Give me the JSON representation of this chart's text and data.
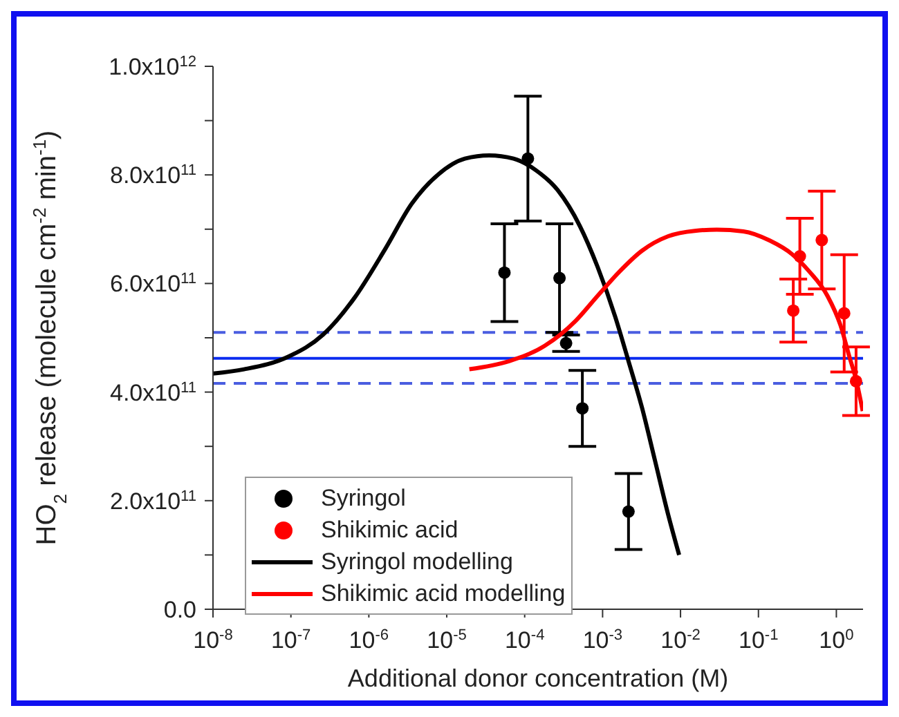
{
  "chart_data": {
    "type": "scatter",
    "xlabel": "Additional donor concentration (M)",
    "ylabel": "HO$_{2}$ release (molecule cm$^{-2}$ min$^{-1}$)",
    "log": "x",
    "xlim": [
      1e-08,
      2.2
    ],
    "xticks": [
      {
        "value": 1e-08,
        "label": "10$^{-8}$"
      },
      {
        "value": 1e-07,
        "label": "10$^{-7}$"
      },
      {
        "value": 1e-06,
        "label": "10$^{-6}$"
      },
      {
        "value": 1e-05,
        "label": "10$^{-5}$"
      },
      {
        "value": 0.0001,
        "label": "10$^{-4}$"
      },
      {
        "value": 0.001,
        "label": "10$^{-3}$"
      },
      {
        "value": 0.01,
        "label": "10$^{-2}$"
      },
      {
        "value": 0.1,
        "label": "10$^{-1}$"
      },
      {
        "value": 1,
        "label": "10$^{0}$"
      }
    ],
    "ylim": [
      0,
      1000000000000.0
    ],
    "yticks": [
      {
        "value": 0,
        "label": "0.0"
      },
      {
        "value": 100000000000.0,
        "label": null
      },
      {
        "value": 200000000000.0,
        "label": "2.0x10$^{11}$"
      },
      {
        "value": 300000000000.0,
        "label": null
      },
      {
        "value": 400000000000.0,
        "label": "4.0x10$^{11}$"
      },
      {
        "value": 500000000000.0,
        "label": null
      },
      {
        "value": 600000000000.0,
        "label": "6.0x10$^{11}$"
      },
      {
        "value": 700000000000.0,
        "label": null
      },
      {
        "value": 800000000000.0,
        "label": "8.0x10$^{11}$"
      },
      {
        "value": 900000000000.0,
        "label": null
      },
      {
        "value": 1000000000000.0,
        "label": "1.0x10$^{12}$"
      }
    ],
    "legend": "bottom left",
    "ref_lines": [
      {
        "axis": "y",
        "value": 462000000000.0,
        "color": "#0b2cf0",
        "line_style": "solid"
      },
      {
        "axis": "y",
        "value": 510000000000.0,
        "color": "#4a5de0",
        "line_style": "dashed"
      },
      {
        "axis": "y",
        "value": 416000000000.0,
        "color": "#4a5de0",
        "line_style": "dashed"
      }
    ],
    "series": [
      {
        "name": "Syringol",
        "marker": "circle",
        "color": "#000000",
        "x": [
          5.5e-05,
          0.00011,
          0.00028,
          0.00034,
          0.00055,
          0.00215
        ],
        "values": [
          620000000000.0,
          830000000000.0,
          610000000000.0,
          490000000000.0,
          370000000000.0,
          180000000000.0
        ],
        "errors": [
          90000000000.0,
          115000000000.0,
          100000000000.0,
          15000000000.0,
          70000000000.0,
          70000000000.0
        ]
      },
      {
        "name": "Shikimic acid",
        "marker": "circle",
        "color": "#ff0000",
        "x": [
          0.28,
          0.34,
          0.65,
          1.26,
          1.79
        ],
        "values": [
          550000000000.0,
          650000000000.0,
          680000000000.0,
          545000000000.0,
          420000000000.0
        ],
        "errors": [
          58000000000.0,
          70000000000.0,
          90000000000.0,
          108000000000.0,
          63000000000.0
        ]
      },
      {
        "name": "Syringol modelling",
        "type": "line",
        "marker": "none",
        "color": "#000000",
        "x": [
          1e-08,
          2.5e-08,
          9.2e-08,
          2.6e-07,
          6.5e-07,
          1.63e-06,
          3.56e-06,
          7.8e-06,
          1.71e-05,
          3.5e-05,
          7.2e-05,
          0.000138,
          0.000265,
          0.00051,
          0.00086,
          0.00145,
          0.00215,
          0.00318,
          0.0047,
          0.00695,
          0.0096
        ],
        "values": [
          434000000000.0,
          442000000000.0,
          465000000000.0,
          506000000000.0,
          573000000000.0,
          664000000000.0,
          747000000000.0,
          801000000000.0,
          830000000000.0,
          836000000000.0,
          830000000000.0,
          809000000000.0,
          772000000000.0,
          706000000000.0,
          631000000000.0,
          539000000000.0,
          457000000000.0,
          373000000000.0,
          274000000000.0,
          174000000000.0,
          100000000000.0
        ]
      },
      {
        "name": "Shikimic acid modelling",
        "type": "line",
        "marker": "none",
        "color": "#ff0000",
        "x": [
          1.95e-05,
          6.3e-05,
          0.00018,
          0.00045,
          0.00086,
          0.00165,
          0.00318,
          0.00695,
          0.0152,
          0.0292,
          0.064,
          0.14,
          0.27,
          0.45,
          0.77,
          1.13,
          1.47,
          1.79,
          2.18
        ],
        "values": [
          442000000000.0,
          457000000000.0,
          485000000000.0,
          531000000000.0,
          577000000000.0,
          622000000000.0,
          660000000000.0,
          687000000000.0,
          697000000000.0,
          699000000000.0,
          696000000000.0,
          679000000000.0,
          654000000000.0,
          622000000000.0,
          577000000000.0,
          523000000000.0,
          465000000000.0,
          423000000000.0,
          365000000000.0
        ]
      }
    ]
  }
}
